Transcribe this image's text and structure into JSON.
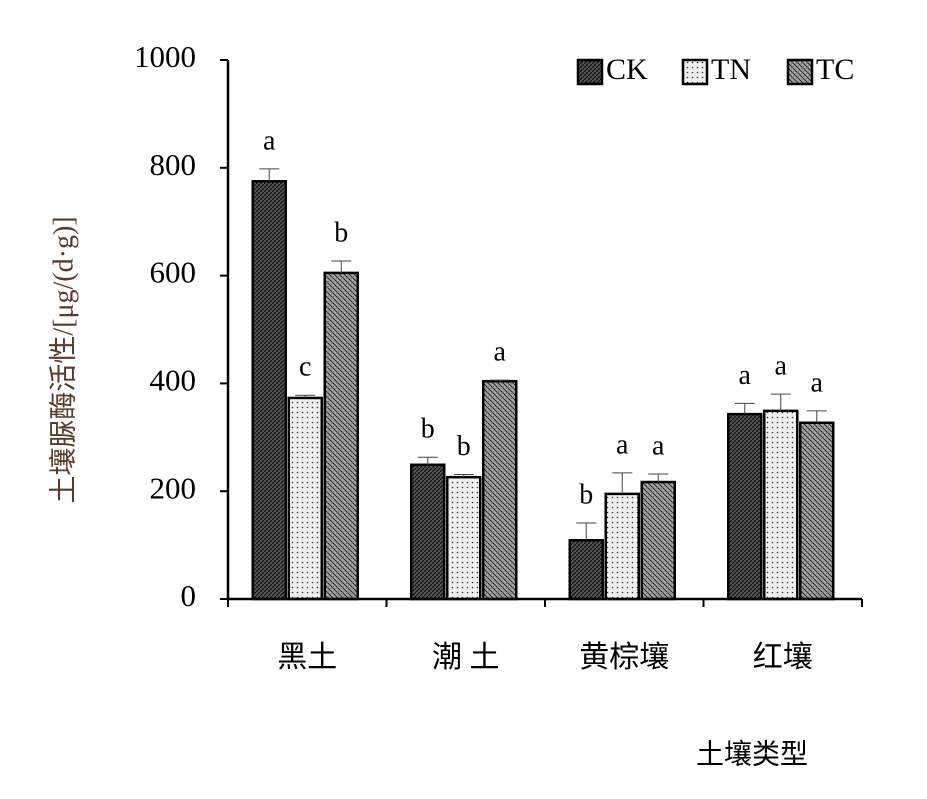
{
  "chart_data": {
    "type": "bar",
    "x_label": "土壤类型",
    "y_label": "土壤脲酶活性/[μg/(d·g)]",
    "categories": [
      "黑土",
      "潮 土",
      "黄棕壤",
      "红壤"
    ],
    "series": [
      {
        "name": "CK",
        "color": "#555555",
        "values": [
          775,
          249,
          109,
          343
        ],
        "errors": [
          23,
          14,
          32,
          20
        ],
        "labels": [
          "a",
          "b",
          "b",
          "a"
        ]
      },
      {
        "name": "TN",
        "color": "#eeeeee",
        "values": [
          373,
          226,
          195,
          349
        ],
        "errors": [
          5,
          5,
          39,
          31
        ],
        "labels": [
          "c",
          "b",
          "a",
          "a"
        ]
      },
      {
        "name": "TC",
        "color": "#aaaaaa",
        "values": [
          605,
          404,
          217,
          327
        ],
        "errors": [
          22,
          2,
          15,
          22
        ],
        "labels": [
          "b",
          "a",
          "a",
          "a"
        ]
      }
    ],
    "ylim": [
      0,
      1000
    ],
    "yticks": [
      0,
      200,
      400,
      600,
      800,
      1000
    ],
    "legend": "top-right"
  }
}
